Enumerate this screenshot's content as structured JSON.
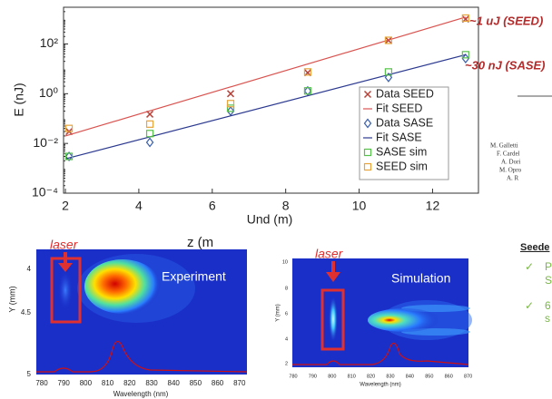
{
  "chart_data": {
    "type": "scatter",
    "x_label": "Und (m)",
    "y_label": "E (nJ)",
    "xlim": [
      1.95,
      13.25
    ],
    "xticks": [
      2,
      4,
      6,
      8,
      10,
      12
    ],
    "ylim": [
      0.0001,
      3000
    ],
    "ylog": true,
    "yticks": [
      {
        "value": 0.0001,
        "label": "10⁻⁴"
      },
      {
        "value": 0.01,
        "label": "10⁻²"
      },
      {
        "value": 1,
        "label": "10⁰"
      },
      {
        "value": 100,
        "label": "10²"
      }
    ],
    "grid": false,
    "legend": "lower right",
    "series": [
      {
        "name": "Data SEED",
        "color": "#b5433a",
        "marker": "x",
        "x": [
          2.1,
          4.3,
          6.5,
          8.6,
          10.8,
          12.9
        ],
        "values": [
          0.03,
          0.15,
          1.0,
          7,
          140,
          1000
        ]
      },
      {
        "name": "Fit SEED",
        "color": "#d9534f",
        "marker": "line",
        "x": [
          2.0,
          12.9
        ],
        "values": [
          0.02,
          1200
        ]
      },
      {
        "name": "Data SASE",
        "color": "#3a5fa8",
        "marker": "diamond",
        "x": [
          2.1,
          4.3,
          6.5,
          8.6,
          10.8,
          12.9
        ],
        "values": [
          0.003,
          0.011,
          0.2,
          1.3,
          4.5,
          26
        ]
      },
      {
        "name": "Fit SASE",
        "color": "#2b3990",
        "marker": "line",
        "x": [
          2.0,
          12.9
        ],
        "values": [
          0.0024,
          37
        ]
      },
      {
        "name": "SASE sim",
        "color": "#57c24a",
        "marker": "square",
        "x": [
          2.1,
          4.3,
          6.5,
          8.6,
          10.8,
          12.9
        ],
        "values": [
          0.003,
          0.025,
          0.26,
          1.3,
          7.5,
          37
        ]
      },
      {
        "name": "SEED sim",
        "color": "#e6a43a",
        "marker": "square",
        "x": [
          2.1,
          4.3,
          6.5,
          8.6,
          10.8,
          12.9
        ],
        "values": [
          0.04,
          0.06,
          0.4,
          7.5,
          140,
          1100
        ]
      }
    ]
  },
  "annotations": {
    "seed_energy": "~1 uJ (SEED)",
    "sase_energy": "~30 nJ (SASE)",
    "z_label": "z (m"
  },
  "panels": [
    {
      "label": "laser",
      "title": "Experiment",
      "y_label": "Y (mm)",
      "y_ticks": [
        4,
        4.5,
        5
      ],
      "x_label": "Wavelength (nm)",
      "x_ticks": [
        780,
        790,
        800,
        810,
        820,
        830,
        840,
        850,
        860,
        870
      ]
    },
    {
      "label": "laser",
      "title": "Simulation",
      "y_label": "Y (mm)",
      "y_ticks": [
        10,
        8,
        6,
        4,
        2
      ],
      "x_label": "Wavelength (nm)",
      "x_ticks": [
        780,
        790,
        800,
        810,
        820,
        830,
        840,
        850,
        860,
        870
      ]
    }
  ],
  "side": {
    "authors": [
      "M. Galletti",
      "F. Cardel",
      "A. Dori",
      "M. Opro",
      "A. R"
    ],
    "heading": "Seede",
    "items": [
      [
        "P",
        "S"
      ],
      [
        "6",
        "s"
      ]
    ]
  }
}
